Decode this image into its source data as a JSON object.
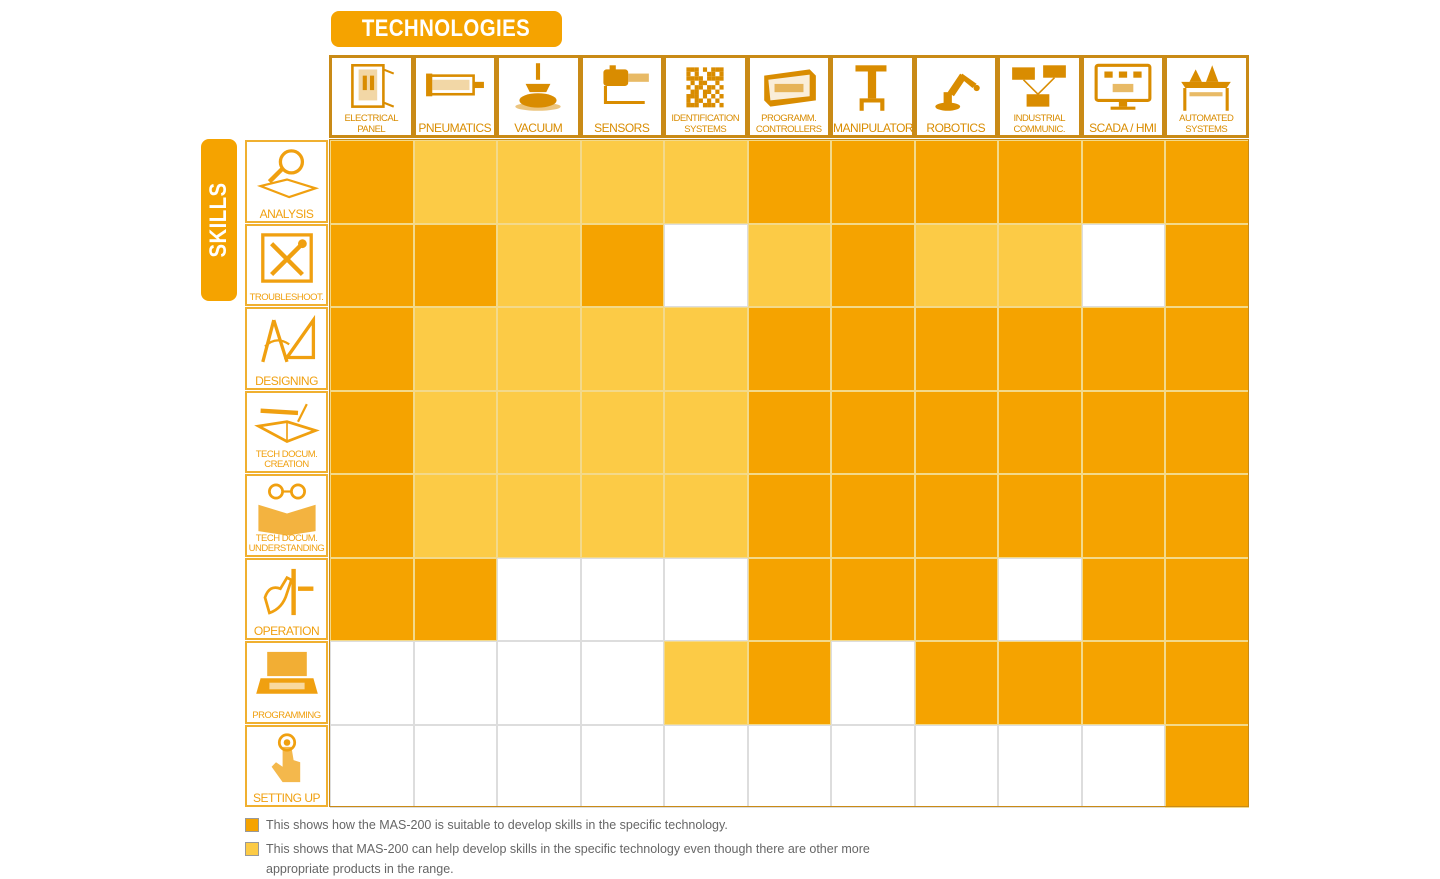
{
  "technologies_title": "TECHNOLOGIES",
  "skills_title": "SKILLS",
  "colors": {
    "full": "#f5a300",
    "partial": "#fccb46",
    "none": "#ffffff",
    "label": "#d98c00"
  },
  "chart_data": {
    "type": "heatmap",
    "columns": [
      {
        "label": "ELECTRICAL PANEL",
        "icon": "electrical-panel-icon"
      },
      {
        "label": "PNEUMATICS",
        "icon": "pneumatic-cylinder-icon"
      },
      {
        "label": "VACUUM",
        "icon": "vacuum-cup-icon"
      },
      {
        "label": "SENSORS",
        "icon": "sensor-icon"
      },
      {
        "label": "IDENTIFICATION SYSTEMS",
        "icon": "qr-code-icon"
      },
      {
        "label": "PROGRAMM. CONTROLLERS",
        "icon": "plc-icon"
      },
      {
        "label": "MANIPULATORS",
        "icon": "manipulator-icon"
      },
      {
        "label": "ROBOTICS",
        "icon": "robot-arm-icon"
      },
      {
        "label": "INDUSTRIAL COMMUNIC.",
        "icon": "network-devices-icon"
      },
      {
        "label": "SCADA / HMI",
        "icon": "monitor-icon"
      },
      {
        "label": "AUTOMATED SYSTEMS",
        "icon": "automated-system-icon"
      }
    ],
    "rows": [
      {
        "label": "ANALYSIS",
        "icon": "magnifier-book-icon",
        "values": [
          2,
          1,
          1,
          1,
          1,
          2,
          2,
          2,
          2,
          2,
          2
        ]
      },
      {
        "label": "TROUBLESHOOT.",
        "icon": "tools-icon",
        "values": [
          2,
          2,
          1,
          2,
          0,
          1,
          2,
          1,
          1,
          0,
          2
        ]
      },
      {
        "label": "DESIGNING",
        "icon": "compass-ruler-icon",
        "values": [
          2,
          1,
          1,
          1,
          1,
          2,
          2,
          2,
          2,
          2,
          2
        ]
      },
      {
        "label": "TECH DOCUM. CREATION",
        "icon": "pen-book-icon",
        "values": [
          2,
          1,
          1,
          1,
          1,
          2,
          2,
          2,
          2,
          2,
          2
        ]
      },
      {
        "label": "TECH DOCUM. UNDERSTANDING",
        "icon": "glasses-book-icon",
        "values": [
          2,
          1,
          1,
          1,
          1,
          2,
          2,
          2,
          2,
          2,
          2
        ]
      },
      {
        "label": "OPERATION",
        "icon": "hand-lever-icon",
        "values": [
          2,
          2,
          0,
          0,
          0,
          2,
          2,
          2,
          0,
          2,
          2
        ]
      },
      {
        "label": "PROGRAMMING",
        "icon": "laptop-icon",
        "values": [
          0,
          0,
          0,
          0,
          1,
          2,
          0,
          2,
          2,
          2,
          2
        ]
      },
      {
        "label": "SETTING UP",
        "icon": "finger-button-icon",
        "values": [
          0,
          0,
          0,
          0,
          0,
          0,
          0,
          0,
          0,
          0,
          2
        ]
      }
    ],
    "value_meaning": {
      "2": "suitable",
      "1": "can help",
      "0": "none"
    }
  },
  "legend": [
    {
      "level": "suitable",
      "color": "#f5a300",
      "text": "This shows how the MAS-200 is suitable to develop skills in the specific technology."
    },
    {
      "level": "can-help",
      "color": "#fccb46",
      "text": "This shows that MAS-200 can help develop skills in the specific technology even though there are other more",
      "text2": "appropriate products in the range."
    }
  ]
}
